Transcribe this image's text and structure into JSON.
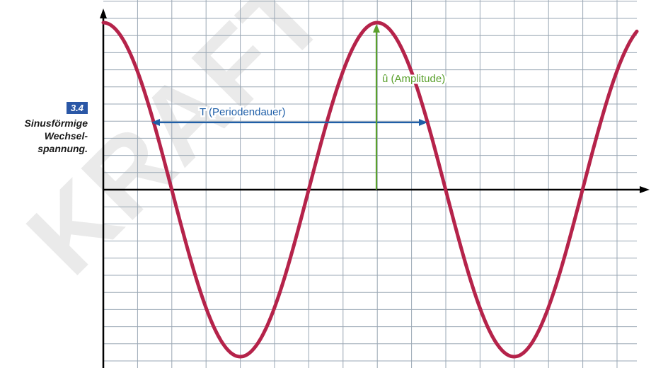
{
  "figure": {
    "number": "3.4",
    "caption": "Sinusförmige\nWechsel-\nspannung."
  },
  "watermark": "KRAFT",
  "colors": {
    "curve": "#b5234a",
    "period": "#1f5fa8",
    "amplitude": "#5aa02c",
    "grid": "#9aa7b4",
    "axis": "#000000"
  },
  "annotations": {
    "period_label": "T (Periodendauer)",
    "amplitude_label": "û (Amplitude)"
  },
  "chart_data": {
    "type": "line",
    "function": "cosine",
    "periods_shown": 2,
    "grid": true,
    "annotations": [
      {
        "name": "period",
        "text": "T (Periodendauer)",
        "spans": "one full period between two points of equal phase"
      },
      {
        "name": "amplitude",
        "text": "û (Amplitude)",
        "spans": "from zero line to crest"
      }
    ]
  }
}
